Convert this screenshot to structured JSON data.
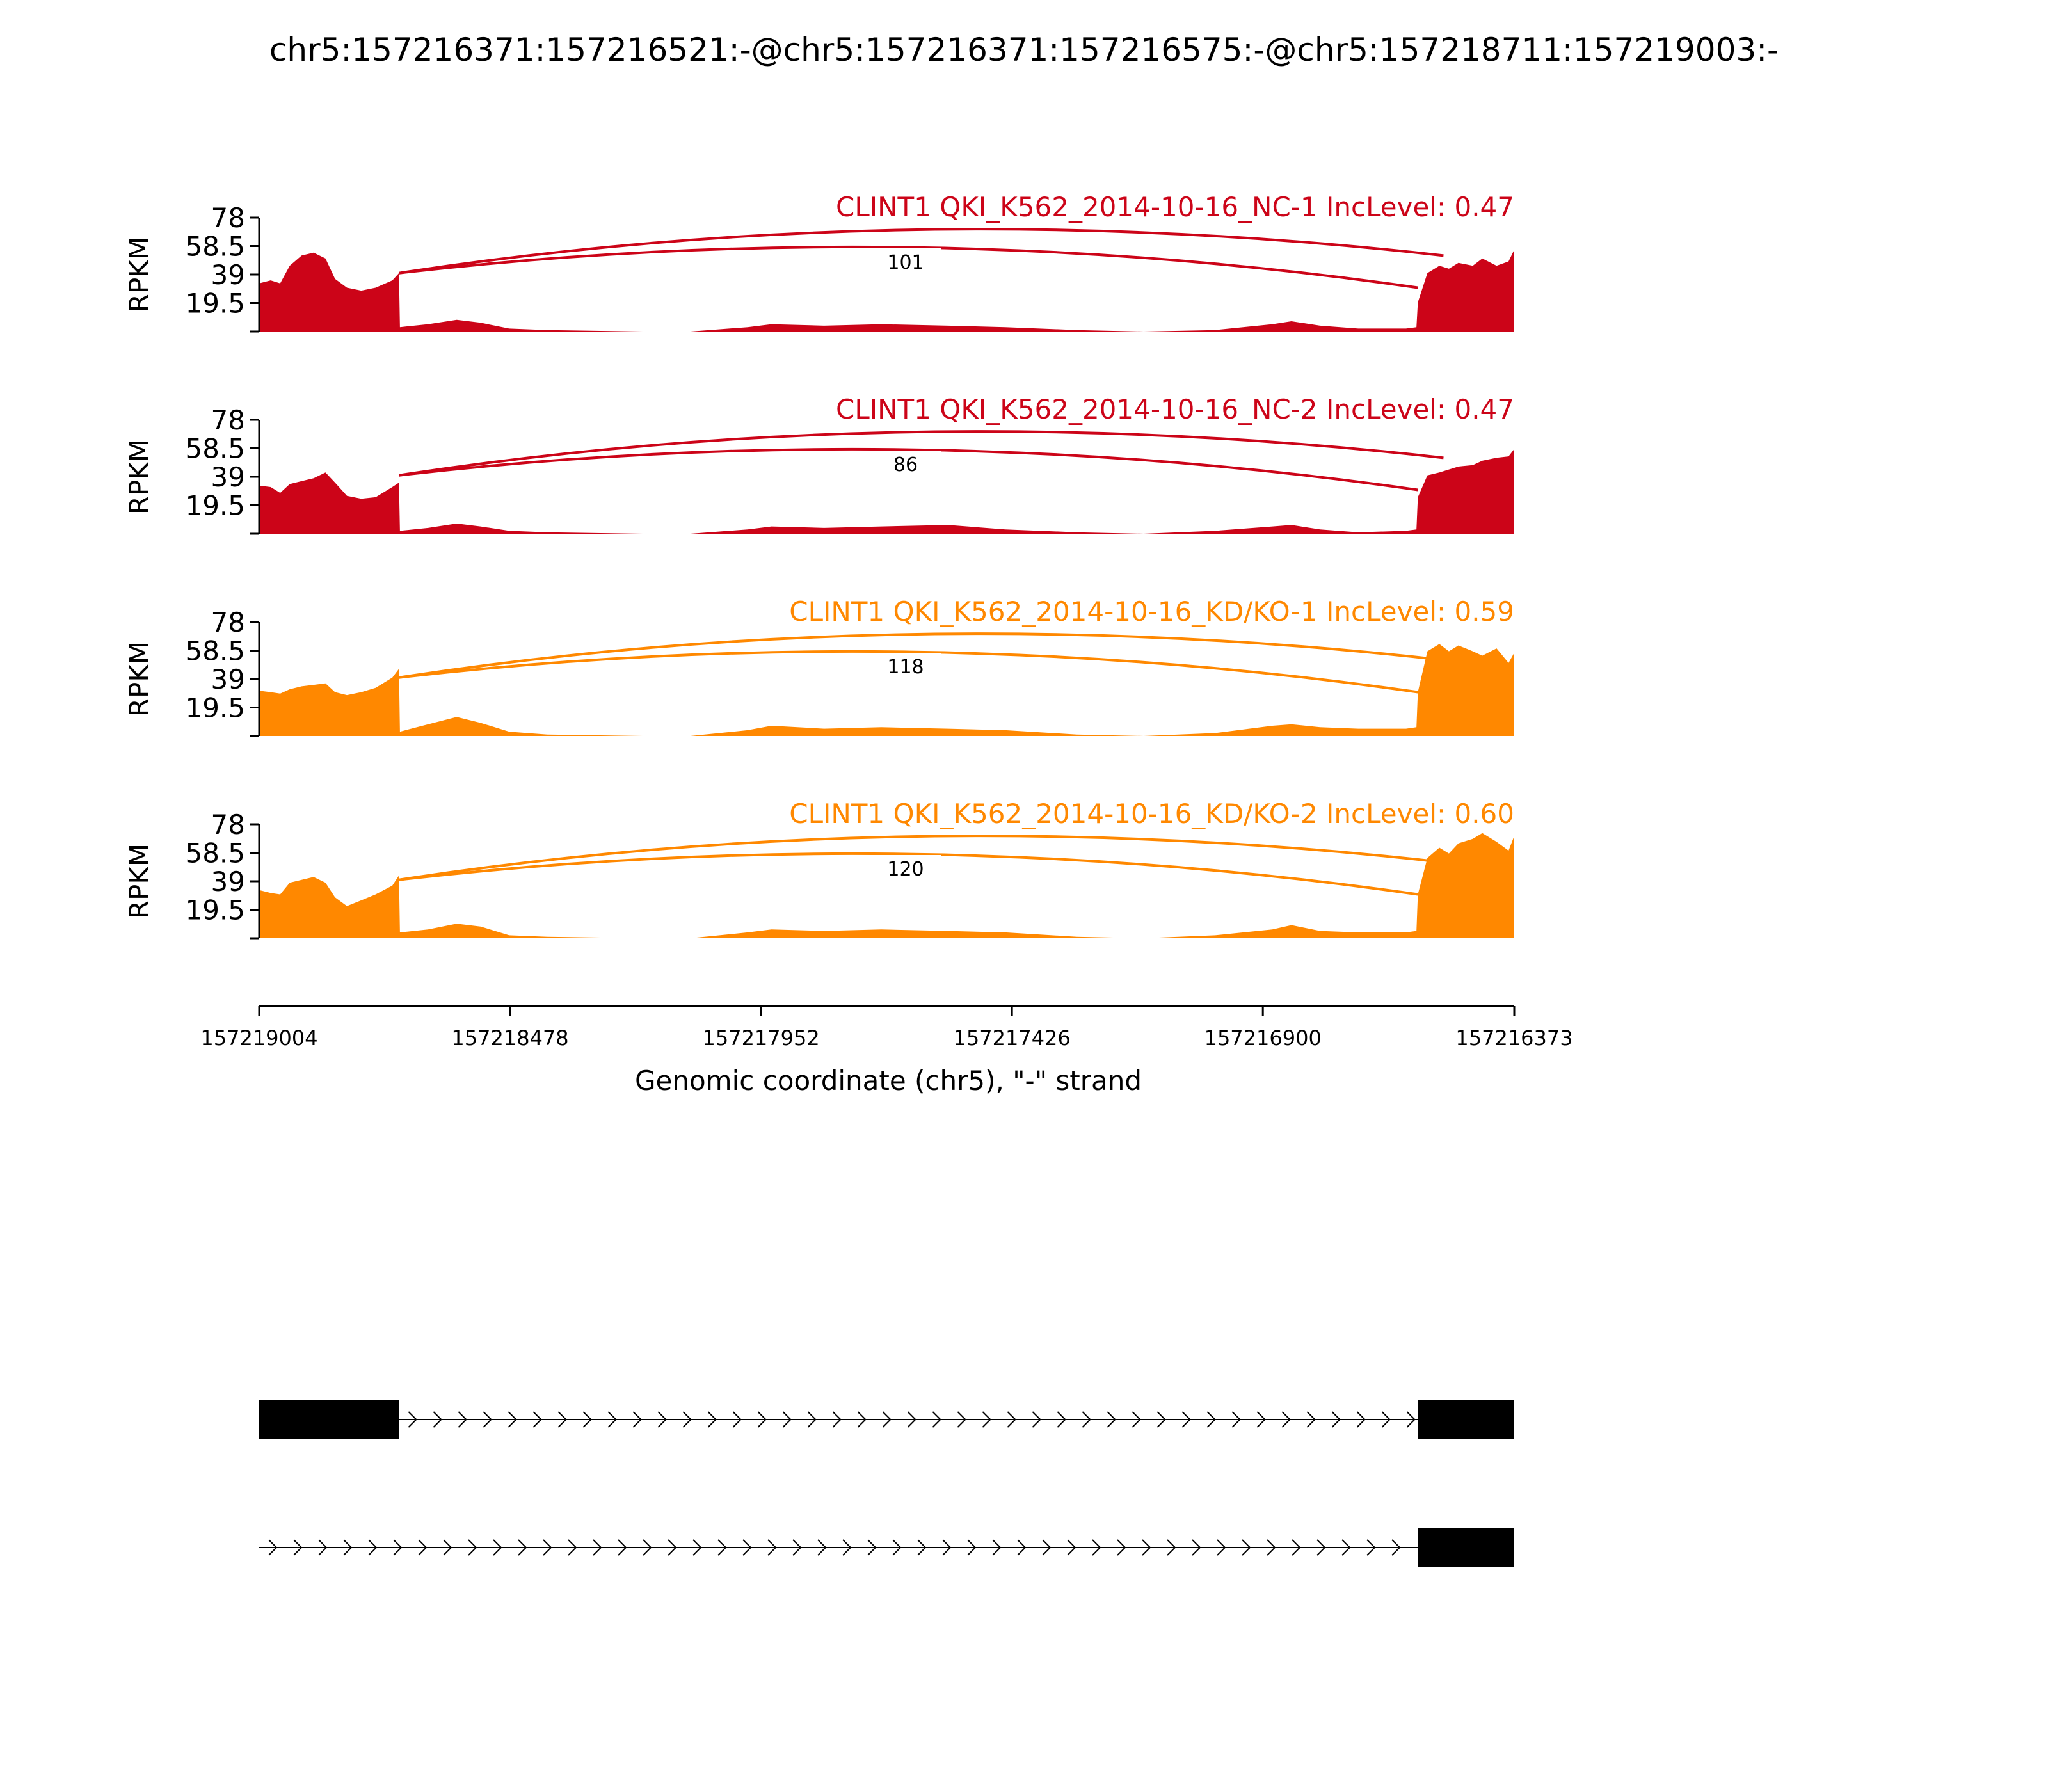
{
  "title": "chr5:157216371:157216521:-@chr5:157216371:157216575:-@chr5:157218711:157219003:-",
  "y_axis_label": "RPKM",
  "x_axis_label": "Genomic coordinate (chr5), \"-\" strand",
  "colors": {
    "nc": "#cc0418",
    "kd": "#ff8800",
    "axis": "#000000",
    "gene": "#000000"
  },
  "chart_data": {
    "type": "area",
    "title": "chr5:157216371:157216521:-@chr5:157216371:157216575:-@chr5:157218711:157219003:-",
    "xlabel": "Genomic coordinate (chr5), \"-\" strand",
    "ylabel": "RPKM",
    "xlim": [
      157219004,
      157216373
    ],
    "x_ticks": [
      "157219004",
      "157218478",
      "157217952",
      "157217426",
      "157216900",
      "157216373"
    ],
    "ylim": [
      0,
      78
    ],
    "y_ticks": [
      "78",
      "58.5",
      "39",
      "19.5"
    ],
    "exons": [
      {
        "name": "upstream exon",
        "start": 157219004,
        "end": 157218711
      },
      {
        "name": "downstream exon",
        "start": 157216575,
        "end": 157216373
      }
    ],
    "panels": [
      {
        "label": "CLINT1 QKI_K562_2014-10-16_NC-1 IncLevel: 0.47",
        "color": "#cc0418",
        "junction_count": "101",
        "coverage": [
          {
            "x": 157219004,
            "y": 33
          },
          {
            "x": 157218980,
            "y": 35
          },
          {
            "x": 157218960,
            "y": 33
          },
          {
            "x": 157218940,
            "y": 45
          },
          {
            "x": 157218915,
            "y": 52
          },
          {
            "x": 157218890,
            "y": 54
          },
          {
            "x": 157218865,
            "y": 50
          },
          {
            "x": 157218845,
            "y": 36
          },
          {
            "x": 157218820,
            "y": 30
          },
          {
            "x": 157218790,
            "y": 28
          },
          {
            "x": 157218760,
            "y": 30
          },
          {
            "x": 157218725,
            "y": 35
          },
          {
            "x": 157218711,
            "y": 40
          },
          {
            "x": 157218709,
            "y": 3
          },
          {
            "x": 157218650,
            "y": 5
          },
          {
            "x": 157218590,
            "y": 8
          },
          {
            "x": 157218540,
            "y": 6
          },
          {
            "x": 157218480,
            "y": 2
          },
          {
            "x": 157218400,
            "y": 1
          },
          {
            "x": 157218200,
            "y": 0
          },
          {
            "x": 157218100,
            "y": 0
          },
          {
            "x": 157217980,
            "y": 3
          },
          {
            "x": 157217930,
            "y": 5
          },
          {
            "x": 157217820,
            "y": 4
          },
          {
            "x": 157217700,
            "y": 5
          },
          {
            "x": 157217560,
            "y": 4
          },
          {
            "x": 157217440,
            "y": 3
          },
          {
            "x": 157217290,
            "y": 1
          },
          {
            "x": 157217150,
            "y": 0
          },
          {
            "x": 157217000,
            "y": 1
          },
          {
            "x": 157216880,
            "y": 5
          },
          {
            "x": 157216840,
            "y": 7
          },
          {
            "x": 157216780,
            "y": 4
          },
          {
            "x": 157216700,
            "y": 2
          },
          {
            "x": 157216600,
            "y": 2
          },
          {
            "x": 157216578,
            "y": 3
          },
          {
            "x": 157216575,
            "y": 20
          },
          {
            "x": 157216555,
            "y": 40
          },
          {
            "x": 157216530,
            "y": 45
          },
          {
            "x": 157216510,
            "y": 43
          },
          {
            "x": 157216490,
            "y": 47
          },
          {
            "x": 157216460,
            "y": 45
          },
          {
            "x": 157216440,
            "y": 50
          },
          {
            "x": 157216410,
            "y": 45
          },
          {
            "x": 157216385,
            "y": 48
          },
          {
            "x": 157216373,
            "y": 56
          }
        ]
      },
      {
        "label": "CLINT1 QKI_K562_2014-10-16_NC-2 IncLevel: 0.47",
        "color": "#cc0418",
        "junction_count": "86",
        "coverage": [
          {
            "x": 157219004,
            "y": 33
          },
          {
            "x": 157218980,
            "y": 32
          },
          {
            "x": 157218960,
            "y": 28
          },
          {
            "x": 157218940,
            "y": 34
          },
          {
            "x": 157218915,
            "y": 36
          },
          {
            "x": 157218890,
            "y": 38
          },
          {
            "x": 157218865,
            "y": 42
          },
          {
            "x": 157218845,
            "y": 35
          },
          {
            "x": 157218820,
            "y": 26
          },
          {
            "x": 157218790,
            "y": 24
          },
          {
            "x": 157218760,
            "y": 25
          },
          {
            "x": 157218725,
            "y": 32
          },
          {
            "x": 157218711,
            "y": 35
          },
          {
            "x": 157218709,
            "y": 2
          },
          {
            "x": 157218650,
            "y": 4
          },
          {
            "x": 157218590,
            "y": 7
          },
          {
            "x": 157218540,
            "y": 5
          },
          {
            "x": 157218480,
            "y": 2
          },
          {
            "x": 157218400,
            "y": 1
          },
          {
            "x": 157218200,
            "y": 0
          },
          {
            "x": 157218100,
            "y": 0
          },
          {
            "x": 157217980,
            "y": 3
          },
          {
            "x": 157217930,
            "y": 5
          },
          {
            "x": 157217820,
            "y": 4
          },
          {
            "x": 157217700,
            "y": 5
          },
          {
            "x": 157217560,
            "y": 6
          },
          {
            "x": 157217440,
            "y": 3
          },
          {
            "x": 157217290,
            "y": 1
          },
          {
            "x": 157217150,
            "y": 0
          },
          {
            "x": 157217000,
            "y": 2
          },
          {
            "x": 157216880,
            "y": 5
          },
          {
            "x": 157216840,
            "y": 6
          },
          {
            "x": 157216780,
            "y": 3
          },
          {
            "x": 157216700,
            "y": 1
          },
          {
            "x": 157216600,
            "y": 2
          },
          {
            "x": 157216578,
            "y": 3
          },
          {
            "x": 157216575,
            "y": 25
          },
          {
            "x": 157216555,
            "y": 40
          },
          {
            "x": 157216530,
            "y": 42
          },
          {
            "x": 157216510,
            "y": 44
          },
          {
            "x": 157216490,
            "y": 46
          },
          {
            "x": 157216460,
            "y": 47
          },
          {
            "x": 157216440,
            "y": 50
          },
          {
            "x": 157216410,
            "y": 52
          },
          {
            "x": 157216385,
            "y": 53
          },
          {
            "x": 157216373,
            "y": 58
          }
        ]
      },
      {
        "label": "CLINT1 QKI_K562_2014-10-16_KD/KO-1 IncLevel: 0.59",
        "color": "#ff8800",
        "junction_count": "118",
        "coverage": [
          {
            "x": 157219004,
            "y": 31
          },
          {
            "x": 157218980,
            "y": 30
          },
          {
            "x": 157218960,
            "y": 29
          },
          {
            "x": 157218940,
            "y": 32
          },
          {
            "x": 157218915,
            "y": 34
          },
          {
            "x": 157218890,
            "y": 35
          },
          {
            "x": 157218865,
            "y": 36
          },
          {
            "x": 157218845,
            "y": 30
          },
          {
            "x": 157218820,
            "y": 28
          },
          {
            "x": 157218790,
            "y": 30
          },
          {
            "x": 157218760,
            "y": 33
          },
          {
            "x": 157218725,
            "y": 40
          },
          {
            "x": 157218711,
            "y": 46
          },
          {
            "x": 157218709,
            "y": 3
          },
          {
            "x": 157218650,
            "y": 8
          },
          {
            "x": 157218590,
            "y": 13
          },
          {
            "x": 157218540,
            "y": 9
          },
          {
            "x": 157218480,
            "y": 3
          },
          {
            "x": 157218400,
            "y": 1
          },
          {
            "x": 157218200,
            "y": 0
          },
          {
            "x": 157218100,
            "y": 0
          },
          {
            "x": 157217980,
            "y": 4
          },
          {
            "x": 157217930,
            "y": 7
          },
          {
            "x": 157217820,
            "y": 5
          },
          {
            "x": 157217700,
            "y": 6
          },
          {
            "x": 157217560,
            "y": 5
          },
          {
            "x": 157217440,
            "y": 4
          },
          {
            "x": 157217290,
            "y": 1
          },
          {
            "x": 157217150,
            "y": 0
          },
          {
            "x": 157217000,
            "y": 2
          },
          {
            "x": 157216880,
            "y": 7
          },
          {
            "x": 157216840,
            "y": 8
          },
          {
            "x": 157216780,
            "y": 6
          },
          {
            "x": 157216700,
            "y": 5
          },
          {
            "x": 157216600,
            "y": 5
          },
          {
            "x": 157216578,
            "y": 6
          },
          {
            "x": 157216575,
            "y": 30
          },
          {
            "x": 157216555,
            "y": 58
          },
          {
            "x": 157216530,
            "y": 63
          },
          {
            "x": 157216510,
            "y": 58
          },
          {
            "x": 157216490,
            "y": 62
          },
          {
            "x": 157216460,
            "y": 58
          },
          {
            "x": 157216440,
            "y": 55
          },
          {
            "x": 157216410,
            "y": 60
          },
          {
            "x": 157216385,
            "y": 50
          },
          {
            "x": 157216373,
            "y": 57
          }
        ]
      },
      {
        "label": "CLINT1 QKI_K562_2014-10-16_KD/KO-2 IncLevel: 0.60",
        "color": "#ff8800",
        "junction_count": "120",
        "coverage": [
          {
            "x": 157219004,
            "y": 33
          },
          {
            "x": 157218980,
            "y": 31
          },
          {
            "x": 157218960,
            "y": 30
          },
          {
            "x": 157218940,
            "y": 38
          },
          {
            "x": 157218915,
            "y": 40
          },
          {
            "x": 157218890,
            "y": 42
          },
          {
            "x": 157218865,
            "y": 38
          },
          {
            "x": 157218845,
            "y": 28
          },
          {
            "x": 157218820,
            "y": 22
          },
          {
            "x": 157218790,
            "y": 26
          },
          {
            "x": 157218760,
            "y": 30
          },
          {
            "x": 157218725,
            "y": 36
          },
          {
            "x": 157218711,
            "y": 43
          },
          {
            "x": 157218709,
            "y": 4
          },
          {
            "x": 157218650,
            "y": 6
          },
          {
            "x": 157218590,
            "y": 10
          },
          {
            "x": 157218540,
            "y": 8
          },
          {
            "x": 157218480,
            "y": 2
          },
          {
            "x": 157218400,
            "y": 1
          },
          {
            "x": 157218200,
            "y": 0
          },
          {
            "x": 157218100,
            "y": 0
          },
          {
            "x": 157217980,
            "y": 4
          },
          {
            "x": 157217930,
            "y": 6
          },
          {
            "x": 157217820,
            "y": 5
          },
          {
            "x": 157217700,
            "y": 6
          },
          {
            "x": 157217560,
            "y": 5
          },
          {
            "x": 157217440,
            "y": 4
          },
          {
            "x": 157217290,
            "y": 1
          },
          {
            "x": 157217150,
            "y": 0
          },
          {
            "x": 157217000,
            "y": 2
          },
          {
            "x": 157216880,
            "y": 6
          },
          {
            "x": 157216840,
            "y": 9
          },
          {
            "x": 157216780,
            "y": 5
          },
          {
            "x": 157216700,
            "y": 4
          },
          {
            "x": 157216600,
            "y": 4
          },
          {
            "x": 157216578,
            "y": 5
          },
          {
            "x": 157216575,
            "y": 30
          },
          {
            "x": 157216555,
            "y": 55
          },
          {
            "x": 157216530,
            "y": 62
          },
          {
            "x": 157216510,
            "y": 58
          },
          {
            "x": 157216490,
            "y": 65
          },
          {
            "x": 157216460,
            "y": 68
          },
          {
            "x": 157216440,
            "y": 72
          },
          {
            "x": 157216410,
            "y": 66
          },
          {
            "x": 157216385,
            "y": 60
          },
          {
            "x": 157216373,
            "y": 70
          }
        ]
      }
    ],
    "isoforms": [
      {
        "exons": [
          {
            "start": 157219004,
            "end": 157218711
          },
          {
            "start": 157216575,
            "end": 157216373
          }
        ]
      },
      {
        "exons": [
          {
            "start": 157216575,
            "end": 157216373
          }
        ]
      }
    ]
  }
}
